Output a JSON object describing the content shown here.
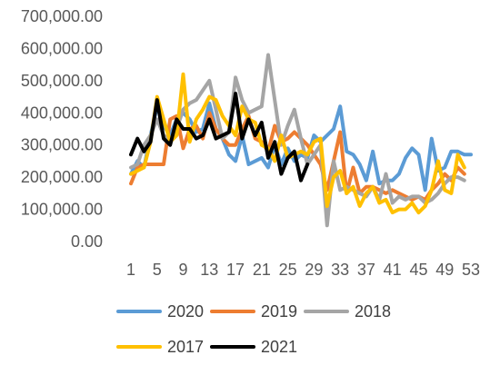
{
  "chart_data": {
    "type": "line",
    "title": "",
    "xlabel": "",
    "ylabel": "",
    "ylim": [
      0,
      700000
    ],
    "yticks": [
      "0.00",
      "100,000.00",
      "200,000.00",
      "300,000.00",
      "400,000.00",
      "500,000.00",
      "600,000.00",
      "700,000.00"
    ],
    "ytick_values": [
      0,
      100000,
      200000,
      300000,
      400000,
      500000,
      600000,
      700000
    ],
    "xlim": [
      1,
      53
    ],
    "xticks": [
      "1",
      "5",
      "9",
      "13",
      "17",
      "21",
      "25",
      "29",
      "33",
      "37",
      "41",
      "45",
      "49",
      "53"
    ],
    "xtick_values": [
      1,
      5,
      9,
      13,
      17,
      21,
      25,
      29,
      33,
      37,
      41,
      45,
      49,
      53
    ],
    "grid": false,
    "legend_position": "bottom",
    "series": [
      {
        "name": "2020",
        "color": "#5B9BD5",
        "x": [
          1,
          2,
          3,
          4,
          5,
          6,
          7,
          8,
          9,
          10,
          11,
          12,
          13,
          14,
          15,
          16,
          17,
          18,
          19,
          20,
          21,
          22,
          23,
          24,
          25,
          26,
          27,
          28,
          29,
          30,
          31,
          32,
          33,
          34,
          35,
          36,
          37,
          38,
          39,
          40,
          41,
          42,
          43,
          44,
          45,
          46,
          47,
          48,
          49,
          50,
          51,
          52,
          53
        ],
        "values": [
          210000,
          250000,
          230000,
          330000,
          420000,
          360000,
          330000,
          380000,
          400000,
          380000,
          340000,
          350000,
          430000,
          350000,
          320000,
          270000,
          250000,
          330000,
          240000,
          250000,
          260000,
          230000,
          300000,
          240000,
          290000,
          250000,
          270000,
          260000,
          330000,
          310000,
          330000,
          350000,
          420000,
          280000,
          270000,
          240000,
          190000,
          280000,
          180000,
          190000,
          190000,
          210000,
          260000,
          290000,
          270000,
          160000,
          320000,
          220000,
          230000,
          280000,
          280000,
          270000,
          270000
        ]
      },
      {
        "name": "2019",
        "color": "#ED7D31",
        "x": [
          1,
          2,
          3,
          4,
          5,
          6,
          7,
          8,
          9,
          10,
          11,
          12,
          13,
          14,
          15,
          16,
          17,
          18,
          19,
          20,
          21,
          22,
          23,
          24,
          25,
          26,
          27,
          28,
          29,
          30,
          31,
          32,
          33,
          34,
          35,
          36,
          37,
          38,
          39,
          40,
          41,
          42,
          43,
          44,
          45,
          46,
          47,
          48,
          49,
          50,
          51,
          52
        ],
        "values": [
          180000,
          230000,
          240000,
          240000,
          240000,
          240000,
          380000,
          390000,
          290000,
          350000,
          360000,
          320000,
          400000,
          350000,
          320000,
          300000,
          300000,
          350000,
          390000,
          320000,
          310000,
          280000,
          360000,
          310000,
          320000,
          340000,
          320000,
          300000,
          270000,
          240000,
          160000,
          250000,
          340000,
          150000,
          230000,
          150000,
          170000,
          170000,
          160000,
          150000,
          160000,
          150000,
          140000,
          130000,
          140000,
          130000,
          160000,
          180000,
          210000,
          190000,
          230000,
          210000
        ]
      },
      {
        "name": "2018",
        "color": "#A5A5A5",
        "x": [
          1,
          2,
          3,
          4,
          5,
          6,
          7,
          8,
          9,
          10,
          11,
          12,
          13,
          14,
          15,
          16,
          17,
          18,
          19,
          20,
          21,
          22,
          23,
          24,
          25,
          26,
          27,
          28,
          29,
          30,
          31,
          32,
          33,
          34,
          35,
          36,
          37,
          38,
          39,
          40,
          41,
          42,
          43,
          44,
          45,
          46,
          47,
          48,
          49,
          50,
          51,
          52
        ],
        "values": [
          230000,
          240000,
          300000,
          330000,
          380000,
          330000,
          310000,
          350000,
          410000,
          430000,
          440000,
          470000,
          500000,
          410000,
          320000,
          340000,
          510000,
          440000,
          400000,
          410000,
          420000,
          580000,
          440000,
          300000,
          360000,
          410000,
          320000,
          240000,
          270000,
          300000,
          50000,
          250000,
          160000,
          170000,
          160000,
          150000,
          140000,
          170000,
          130000,
          210000,
          120000,
          140000,
          130000,
          140000,
          140000,
          120000,
          130000,
          150000,
          180000,
          200000,
          200000,
          190000
        ]
      },
      {
        "name": "2017",
        "color": "#FFC000",
        "x": [
          1,
          2,
          3,
          4,
          5,
          6,
          7,
          8,
          9,
          10,
          11,
          12,
          13,
          14,
          15,
          16,
          17,
          18,
          19,
          20,
          21,
          22,
          23,
          24,
          25,
          26,
          27,
          28,
          29,
          30,
          31,
          32,
          33,
          34,
          35,
          36,
          37,
          38,
          39,
          40,
          41,
          42,
          43,
          44,
          45,
          46,
          47,
          48,
          49,
          50,
          51,
          52
        ],
        "values": [
          210000,
          220000,
          230000,
          310000,
          450000,
          380000,
          310000,
          330000,
          520000,
          310000,
          380000,
          410000,
          450000,
          440000,
          390000,
          360000,
          330000,
          420000,
          380000,
          370000,
          300000,
          290000,
          250000,
          330000,
          260000,
          270000,
          280000,
          270000,
          310000,
          320000,
          110000,
          200000,
          220000,
          150000,
          170000,
          110000,
          150000,
          170000,
          120000,
          130000,
          90000,
          100000,
          100000,
          120000,
          90000,
          110000,
          160000,
          250000,
          160000,
          150000,
          270000,
          230000
        ]
      },
      {
        "name": "2021",
        "color": "#000000",
        "x": [
          1,
          2,
          3,
          4,
          5,
          6,
          7,
          8,
          9,
          10,
          11,
          12,
          13,
          14,
          15,
          16,
          17,
          18,
          19,
          20,
          21,
          22,
          23,
          24,
          25,
          26,
          27,
          28
        ],
        "values": [
          270000,
          320000,
          280000,
          310000,
          440000,
          320000,
          300000,
          380000,
          350000,
          350000,
          320000,
          330000,
          380000,
          320000,
          330000,
          340000,
          460000,
          320000,
          380000,
          330000,
          370000,
          260000,
          310000,
          210000,
          260000,
          280000,
          190000,
          240000
        ]
      }
    ]
  }
}
